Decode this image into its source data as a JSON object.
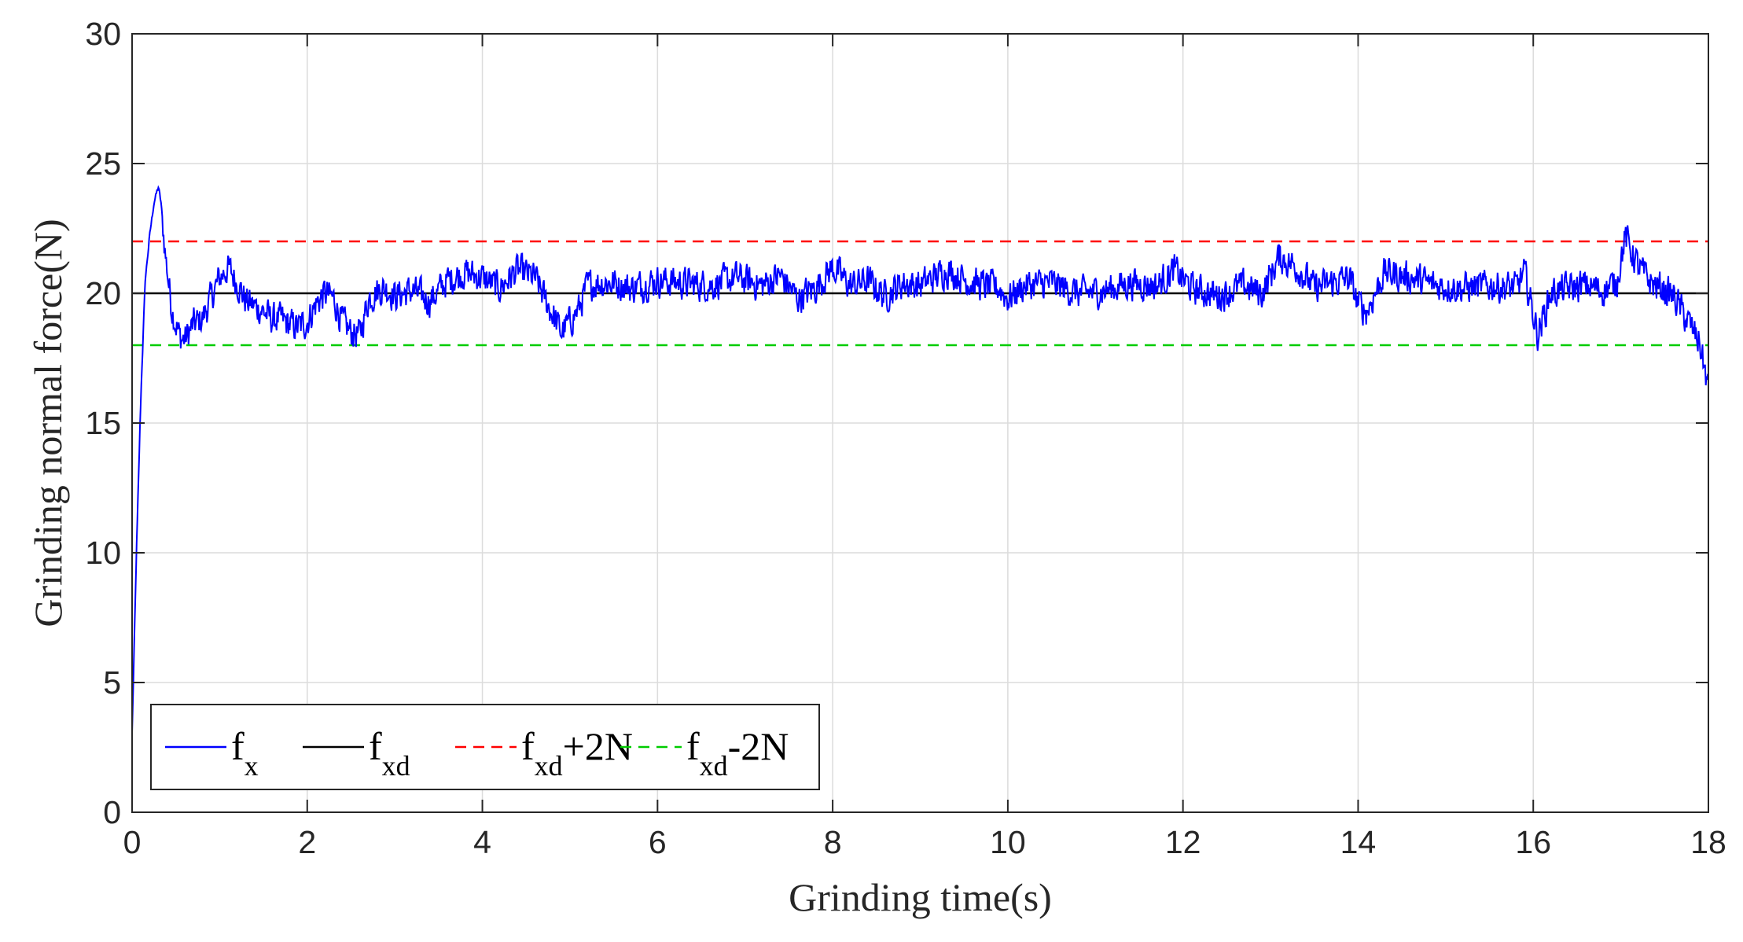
{
  "chart_data": {
    "type": "line",
    "title": "",
    "xlabel": "Grinding time(s)",
    "ylabel": "Grinding normal force(N)",
    "xlim": [
      0,
      18
    ],
    "ylim": [
      0,
      30
    ],
    "xticks": [
      0,
      2,
      4,
      6,
      8,
      10,
      12,
      14,
      16,
      18
    ],
    "yticks": [
      0,
      5,
      10,
      15,
      20,
      25,
      30
    ],
    "xtick_labels": [
      "0",
      "2",
      "4",
      "6",
      "8",
      "10",
      "12",
      "14",
      "16",
      "18"
    ],
    "ytick_labels": [
      "0",
      "5",
      "10",
      "15",
      "20",
      "25",
      "30"
    ],
    "grid": true,
    "legend_position": "bottom-left",
    "series": [
      {
        "legend_main": "f",
        "legend_sub": "x",
        "legend_tail": "",
        "color": "#0000ff",
        "style": "solid",
        "x": [
          0,
          0.05,
          0.1,
          0.15,
          0.2,
          0.25,
          0.3,
          0.33,
          0.38,
          0.45,
          0.5,
          0.55,
          0.6,
          0.7,
          0.8,
          0.9,
          1.0,
          1.1,
          1.2,
          1.3,
          1.4,
          1.5,
          1.6,
          1.7,
          1.8,
          1.9,
          2.0,
          2.1,
          2.2,
          2.3,
          2.4,
          2.5,
          2.6,
          2.7,
          2.8,
          2.9,
          3.0,
          3.2,
          3.4,
          3.6,
          3.8,
          4.0,
          4.2,
          4.4,
          4.6,
          4.7,
          4.8,
          4.9,
          5.0,
          5.1,
          5.2,
          5.3,
          5.5,
          5.7,
          6.0,
          6.3,
          6.6,
          6.9,
          7.2,
          7.4,
          7.6,
          7.8,
          8.0,
          8.2,
          8.4,
          8.6,
          8.8,
          9.0,
          9.3,
          9.6,
          9.9,
          10.0,
          10.2,
          10.5,
          10.8,
          11.1,
          11.4,
          11.7,
          11.9,
          12.1,
          12.4,
          12.7,
          12.9,
          13.1,
          13.3,
          13.5,
          13.7,
          13.9,
          14.0,
          14.1,
          14.3,
          14.6,
          14.9,
          15.2,
          15.5,
          15.8,
          15.9,
          16.0,
          16.05,
          16.1,
          16.2,
          16.4,
          16.6,
          16.8,
          16.95,
          17.05,
          17.2,
          17.35,
          17.5,
          17.6,
          17.7,
          17.8,
          17.9,
          18.0
        ],
        "y": [
          3,
          10,
          16,
          20.5,
          22.2,
          23.5,
          24.1,
          23.5,
          21.5,
          19.5,
          18.8,
          18.3,
          18.2,
          18.8,
          19.0,
          19.8,
          20.6,
          21.0,
          20.4,
          19.7,
          19.5,
          19.3,
          19.0,
          19.0,
          18.8,
          18.7,
          18.9,
          19.6,
          20.0,
          19.8,
          18.9,
          18.5,
          18.4,
          19.8,
          20.1,
          20.2,
          19.9,
          20.1,
          19.7,
          20.5,
          20.8,
          20.6,
          20.2,
          20.9,
          20.6,
          19.9,
          19.2,
          18.5,
          18.9,
          19.4,
          20.3,
          20.4,
          20.4,
          20.2,
          20.5,
          20.4,
          20.3,
          20.6,
          20.3,
          20.7,
          19.8,
          20.2,
          21.0,
          20.3,
          20.5,
          19.9,
          20.4,
          20.3,
          20.9,
          20.4,
          20.2,
          19.8,
          20.3,
          20.4,
          20.0,
          20.1,
          20.4,
          20.3,
          20.9,
          20.2,
          19.9,
          20.3,
          20.0,
          21.4,
          21.0,
          20.2,
          20.4,
          20.6,
          19.6,
          19.3,
          20.8,
          20.6,
          20.3,
          20.2,
          20.3,
          20.2,
          20.8,
          19.2,
          18.4,
          18.9,
          20.0,
          20.2,
          20.3,
          20.1,
          20.4,
          22.2,
          21.0,
          20.4,
          20.1,
          19.9,
          19.3,
          18.7,
          18.1,
          16.3
        ],
        "noise": 0.55
      },
      {
        "legend_main": "f",
        "legend_sub": "xd",
        "legend_tail": "",
        "color": "#000000",
        "style": "solid",
        "x": [
          0,
          18
        ],
        "y": [
          20,
          20
        ]
      },
      {
        "legend_main": "f",
        "legend_sub": "xd",
        "legend_tail": "+2N",
        "color": "#ff0000",
        "style": "dashed",
        "x": [
          0,
          18
        ],
        "y": [
          22,
          22
        ]
      },
      {
        "legend_main": "f",
        "legend_sub": "xd",
        "legend_tail": "-2N",
        "color": "#00cc00",
        "style": "dashed",
        "x": [
          0,
          18
        ],
        "y": [
          18,
          18
        ]
      }
    ]
  }
}
